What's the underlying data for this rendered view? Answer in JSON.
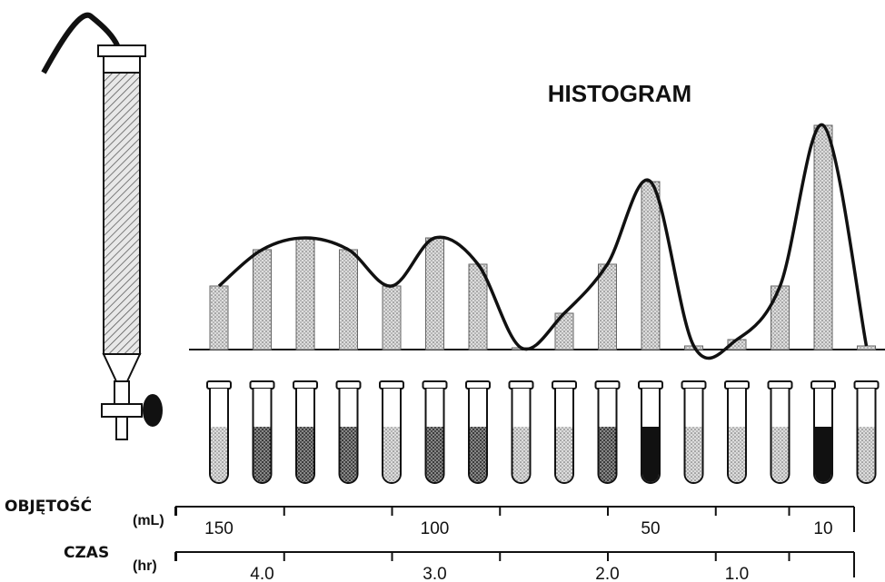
{
  "title": "HISTOGRAM",
  "histogram": {
    "values": [
      70,
      110,
      123,
      110,
      70,
      123,
      94,
      2,
      40,
      94,
      185,
      4,
      11,
      70,
      247,
      4
    ]
  },
  "volume_scale": {
    "label": "OBJĘTOŚĆ",
    "unit": "(mL)",
    "ticks": [
      "150",
      "100",
      "50",
      "10"
    ]
  },
  "time_scale": {
    "label": "CZAS",
    "unit": "(hr)",
    "ticks": [
      "4.0",
      "3.0",
      "2.0",
      "1.0"
    ]
  }
}
